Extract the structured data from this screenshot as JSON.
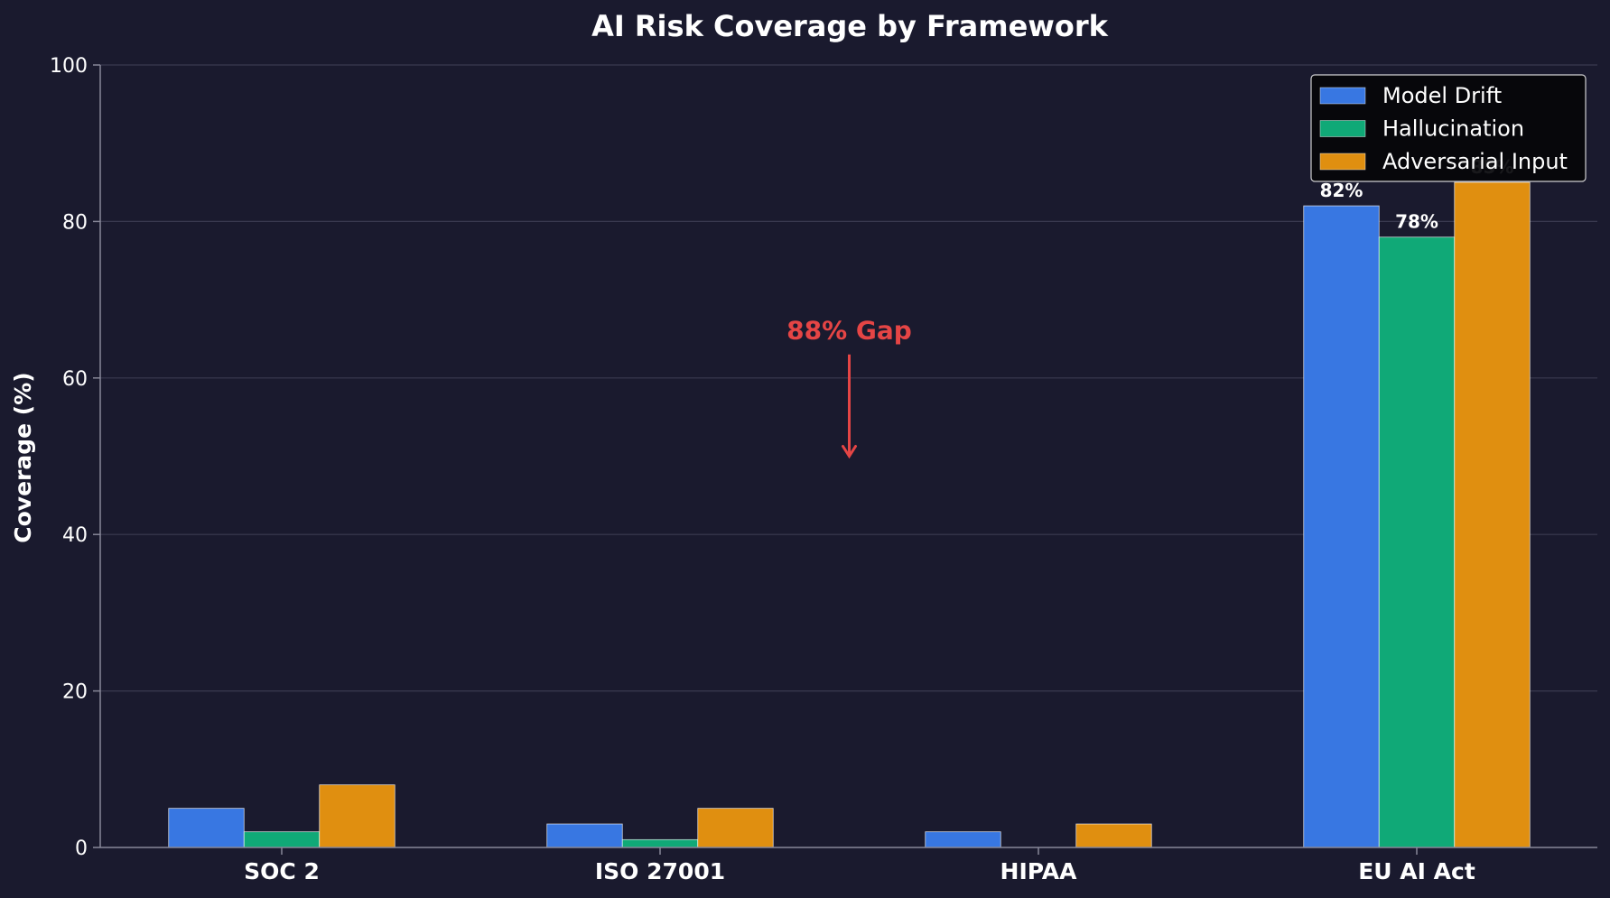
{
  "chart_data": {
    "type": "bar",
    "title": "AI Risk Coverage by Framework",
    "xlabel": "",
    "ylabel": "Coverage (%)",
    "ylim": [
      0,
      100
    ],
    "yticks": [
      "0",
      "20",
      "40",
      "60",
      "80",
      "100"
    ],
    "grid": true,
    "legend_position": "top-right",
    "categories": [
      "SOC 2",
      "ISO 27001",
      "HIPAA",
      "EU AI Act"
    ],
    "series": [
      {
        "name": "Model Drift",
        "color": "#3877e2",
        "values": [
          5,
          3,
          2,
          82
        ]
      },
      {
        "name": "Hallucination",
        "color": "#10a977",
        "values": [
          2,
          1,
          0,
          78
        ]
      },
      {
        "name": "Adversarial Input",
        "color": "#e08f10",
        "values": [
          8,
          5,
          3,
          85
        ]
      }
    ],
    "data_labels": [
      {
        "category_index": 3,
        "series_index": 0,
        "text": "82%"
      },
      {
        "category_index": 3,
        "series_index": 1,
        "text": "78%"
      },
      {
        "category_index": 3,
        "series_index": 2,
        "text": "85%"
      }
    ],
    "annotation": {
      "text": "88% Gap",
      "color": "#e54545",
      "text_y": 65,
      "arrow_from_y": 63,
      "arrow_to_y": 50,
      "x_between": [
        1,
        2
      ]
    },
    "colors": {
      "background": "#1a1a2e",
      "grid": "#3a3a50",
      "axis": "#888899",
      "legend_bg": "#050509",
      "legend_border": "#ffffff"
    }
  }
}
